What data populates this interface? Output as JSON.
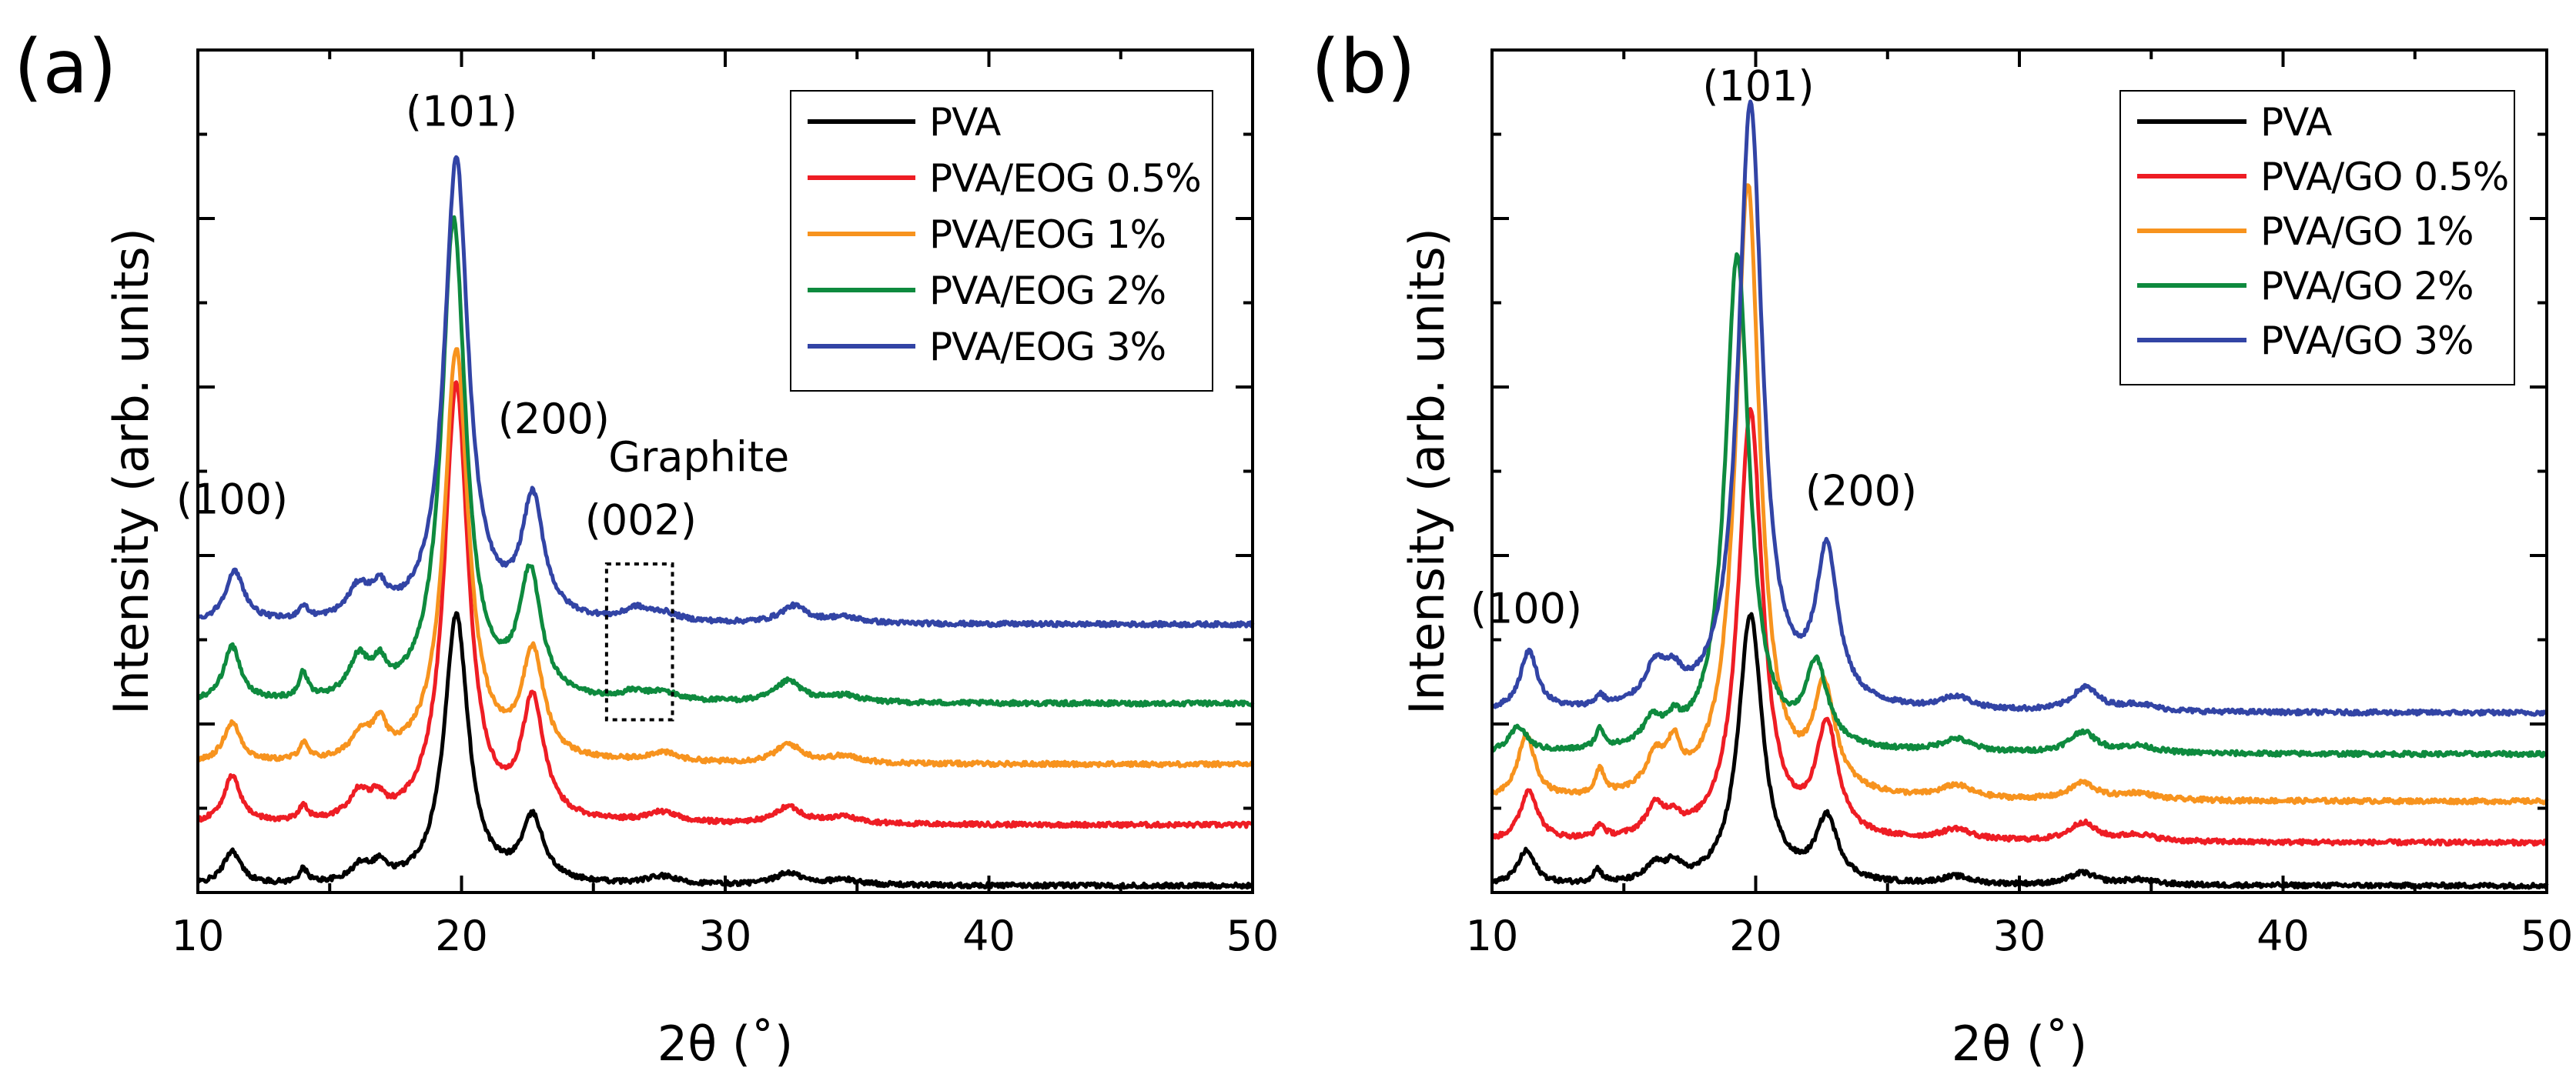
{
  "chart_data": [
    {
      "type": "line",
      "panel_label": "(a)",
      "xlabel": "2θ (˚)",
      "ylabel": "Intensity (arb. units)",
      "xlim": [
        10,
        50
      ],
      "ylim": [
        0,
        100
      ],
      "x_ticks": [
        "10",
        "20",
        "30",
        "40",
        "50"
      ],
      "y_tick_values": [
        0,
        20,
        40,
        60,
        80,
        100
      ],
      "series": [
        {
          "name": "PVA",
          "color": "#000000",
          "baseline": 0.8,
          "peaks": [
            [
              11.3,
              4.0,
              0.4
            ],
            [
              14.0,
              1.6,
              0.2
            ],
            [
              16.2,
              2.0,
              0.45
            ],
            [
              16.9,
              1.8,
              0.3
            ],
            [
              19.8,
              32.0,
              0.55
            ],
            [
              22.7,
              7.5,
              0.5
            ],
            [
              27.6,
              0.9,
              0.7
            ],
            [
              32.4,
              1.4,
              0.6
            ],
            [
              34.5,
              0.6,
              0.8
            ]
          ]
        },
        {
          "name": "PVA/EOG 0.5%",
          "color": "#ee1d24",
          "baseline": 8.0,
          "peaks": [
            [
              11.3,
              5.5,
              0.4
            ],
            [
              14.0,
              1.8,
              0.2
            ],
            [
              16.1,
              3.0,
              0.45
            ],
            [
              16.8,
              2.0,
              0.3
            ],
            [
              19.8,
              52.0,
              0.55
            ],
            [
              22.7,
              14.0,
              0.5
            ],
            [
              27.6,
              1.2,
              0.7
            ],
            [
              32.4,
              2.0,
              0.6
            ],
            [
              34.5,
              0.8,
              0.8
            ]
          ]
        },
        {
          "name": "PVA/EOG 1%",
          "color": "#f7931e",
          "baseline": 15.2,
          "peaks": [
            [
              11.3,
              4.7,
              0.4
            ],
            [
              14.0,
              2.0,
              0.2
            ],
            [
              16.2,
              3.0,
              0.45
            ],
            [
              16.9,
              3.5,
              0.3
            ],
            [
              19.8,
              49.0,
              0.55
            ],
            [
              22.7,
              12.5,
              0.5
            ],
            [
              27.6,
              1.1,
              0.7
            ],
            [
              32.4,
              2.2,
              0.6
            ],
            [
              34.5,
              0.8,
              0.8
            ]
          ]
        },
        {
          "name": "PVA/EOG 2%",
          "color": "#0e8a3e",
          "baseline": 22.4,
          "peaks": [
            [
              11.3,
              6.5,
              0.4
            ],
            [
              14.0,
              3.0,
              0.2
            ],
            [
              16.1,
              4.5,
              0.45
            ],
            [
              16.9,
              3.0,
              0.3
            ],
            [
              19.7,
              57.0,
              0.55
            ],
            [
              22.6,
              14.5,
              0.5
            ],
            [
              26.5,
              0.8,
              0.5
            ],
            [
              27.6,
              1.0,
              0.7
            ],
            [
              32.4,
              2.5,
              0.6
            ],
            [
              34.5,
              0.8,
              0.8
            ]
          ]
        },
        {
          "name": "PVA/EOG 3%",
          "color": "#3244a5",
          "baseline": 31.8,
          "peaks": [
            [
              11.4,
              6.0,
              0.45
            ],
            [
              14.0,
              1.5,
              0.2
            ],
            [
              16.1,
              3.5,
              0.5
            ],
            [
              16.9,
              2.8,
              0.35
            ],
            [
              19.8,
              55.0,
              0.55
            ],
            [
              22.7,
              14.0,
              0.5
            ],
            [
              26.6,
              1.3,
              0.5
            ],
            [
              27.6,
              1.0,
              0.7
            ],
            [
              32.6,
              2.0,
              0.6
            ],
            [
              34.5,
              0.7,
              0.8
            ]
          ]
        }
      ],
      "annotations": [
        {
          "text": "(100)",
          "x": 11.3,
          "y": 45
        },
        {
          "text": "(101)",
          "x": 20.0,
          "y": 91
        },
        {
          "text": "(200)",
          "x": 23.5,
          "y": 54.5
        },
        {
          "text": "Graphite",
          "x": 29.0,
          "y": 50
        },
        {
          "text": "(002)",
          "x": 26.8,
          "y": 42.5
        }
      ],
      "highlight_box": {
        "x_range": [
          25.5,
          28.0
        ],
        "y_range": [
          20.5,
          39.0
        ]
      },
      "legend": {
        "position": "top-right"
      }
    },
    {
      "type": "line",
      "panel_label": "(b)",
      "xlabel": "2θ (˚)",
      "ylabel": "Intensity (arb. units)",
      "xlim": [
        10,
        50
      ],
      "ylim": [
        0,
        100
      ],
      "x_ticks": [
        "10",
        "20",
        "30",
        "40",
        "50"
      ],
      "y_tick_values": [
        0,
        20,
        40,
        60,
        80,
        100
      ],
      "series": [
        {
          "name": "PVA",
          "color": "#000000",
          "baseline": 0.8,
          "peaks": [
            [
              11.3,
              4.0,
              0.4
            ],
            [
              14.0,
              1.6,
              0.2
            ],
            [
              16.2,
              2.0,
              0.45
            ],
            [
              16.9,
              1.8,
              0.3
            ],
            [
              19.8,
              32.0,
              0.55
            ],
            [
              22.7,
              7.5,
              0.5
            ],
            [
              27.6,
              0.9,
              0.7
            ],
            [
              32.4,
              1.4,
              0.6
            ],
            [
              34.5,
              0.6,
              0.8
            ]
          ]
        },
        {
          "name": "PVA/GO 0.5%",
          "color": "#ee1d24",
          "baseline": 5.9,
          "peaks": [
            [
              11.4,
              6.0,
              0.4
            ],
            [
              14.1,
              1.5,
              0.2
            ],
            [
              16.2,
              3.5,
              0.45
            ],
            [
              16.9,
              1.6,
              0.3
            ],
            [
              19.8,
              51.0,
              0.55
            ],
            [
              22.7,
              13.0,
              0.5
            ],
            [
              27.6,
              1.3,
              0.7
            ],
            [
              32.4,
              2.2,
              0.6
            ],
            [
              34.5,
              0.8,
              0.8
            ]
          ]
        },
        {
          "name": "PVA/GO 1%",
          "color": "#f7931e",
          "baseline": 10.8,
          "peaks": [
            [
              11.3,
              7.5,
              0.4
            ],
            [
              14.1,
              3.0,
              0.2
            ],
            [
              16.2,
              4.0,
              0.45
            ],
            [
              16.9,
              4.5,
              0.3
            ],
            [
              19.7,
              73.0,
              0.55
            ],
            [
              22.6,
              12.0,
              0.5
            ],
            [
              27.6,
              1.5,
              0.7
            ],
            [
              32.4,
              2.0,
              0.6
            ],
            [
              34.5,
              0.8,
              0.8
            ]
          ]
        },
        {
          "name": "PVA/GO 2%",
          "color": "#0e8a3e",
          "baseline": 16.4,
          "peaks": [
            [
              11.0,
              3.0,
              0.4
            ],
            [
              14.1,
              2.3,
              0.2
            ],
            [
              16.1,
              3.0,
              0.45
            ],
            [
              16.9,
              2.0,
              0.3
            ],
            [
              19.3,
              59.0,
              0.55
            ],
            [
              22.3,
              9.5,
              0.5
            ],
            [
              27.6,
              1.5,
              0.7
            ],
            [
              32.4,
              2.5,
              0.6
            ],
            [
              34.5,
              0.8,
              0.8
            ]
          ]
        },
        {
          "name": "PVA/GO 3%",
          "color": "#3244a5",
          "baseline": 21.3,
          "peaks": [
            [
              11.4,
              7.0,
              0.4
            ],
            [
              14.1,
              1.2,
              0.2
            ],
            [
              16.2,
              4.5,
              0.5
            ],
            [
              16.9,
              2.5,
              0.35
            ],
            [
              19.8,
              72.0,
              0.55
            ],
            [
              22.7,
              18.0,
              0.5
            ],
            [
              27.6,
              1.5,
              0.7
            ],
            [
              32.5,
              2.8,
              0.6
            ],
            [
              34.5,
              0.8,
              0.8
            ]
          ]
        }
      ],
      "annotations": [
        {
          "text": "(100)",
          "x": 11.3,
          "y": 32
        },
        {
          "text": "(101)",
          "x": 20.1,
          "y": 94
        },
        {
          "text": "(200)",
          "x": 24.0,
          "y": 46
        }
      ],
      "legend": {
        "position": "top-right"
      }
    }
  ]
}
